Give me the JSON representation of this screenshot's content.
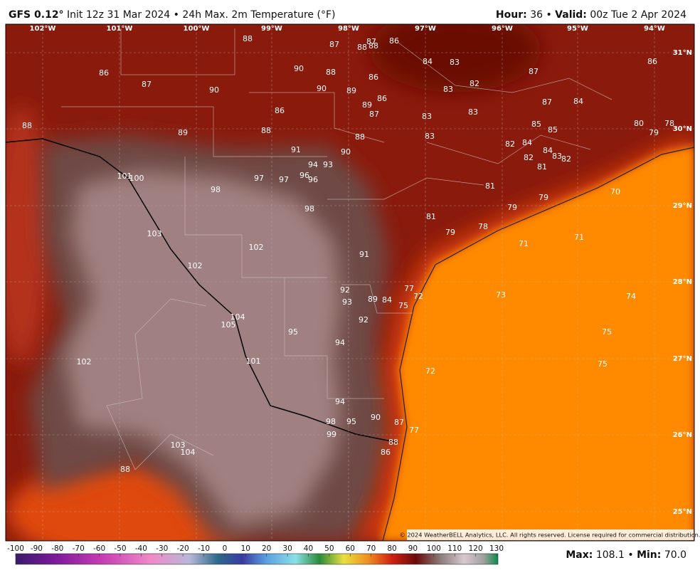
{
  "header": {
    "model": "GFS 0.12°",
    "description": "Init 12z 31 Mar 2024 • 24h Max. 2m Temperature (°F)",
    "hour_label": "Hour:",
    "hour": "36 •",
    "valid_label": "Valid:",
    "valid": "00z Tue 2 Apr 2024"
  },
  "map": {
    "longitudes": [
      "102°W",
      "101°W",
      "100°W",
      "99°W",
      "98°W",
      "97°W",
      "96°W",
      "95°W",
      "94°W"
    ],
    "latitudes": [
      "31°N",
      "30°N",
      "29°N",
      "28°N",
      "27°N",
      "26°N",
      "25°N"
    ],
    "temperatures": [
      88,
      87,
      88,
      87,
      88,
      86,
      84,
      83,
      86,
      86,
      87,
      90,
      90,
      88,
      86,
      87,
      90,
      89,
      86,
      83,
      82,
      89,
      86,
      87,
      83,
      83,
      87,
      84,
      88,
      89,
      88,
      88,
      83,
      85,
      85,
      80,
      79,
      78,
      82,
      84,
      84,
      91,
      90,
      82,
      83,
      82,
      94,
      93,
      81,
      101,
      100,
      97,
      97,
      96,
      96,
      98,
      81,
      70,
      79,
      98,
      79,
      81,
      78,
      79,
      103,
      71,
      71,
      102,
      91,
      102,
      77,
      92,
      74,
      73,
      72,
      89,
      84,
      93,
      75,
      104,
      105,
      92,
      95,
      75,
      94,
      101,
      102,
      75,
      72,
      94,
      98,
      95,
      90,
      87,
      77,
      99,
      88,
      86,
      103,
      104,
      88
    ],
    "copyright": "© 2024 WeatherBELL Analytics, LLC. All rights reserved. License required for commercial distribution."
  },
  "colorbar": {
    "ticks": [
      -100,
      -90,
      -80,
      -70,
      -60,
      -50,
      -40,
      -30,
      -20,
      -10,
      0,
      10,
      20,
      30,
      40,
      50,
      60,
      70,
      80,
      90,
      100,
      110,
      120,
      130
    ]
  },
  "footer": {
    "max_label": "Max:",
    "max": "108.1 •",
    "min_label": "Min:",
    "min": "70.0"
  }
}
